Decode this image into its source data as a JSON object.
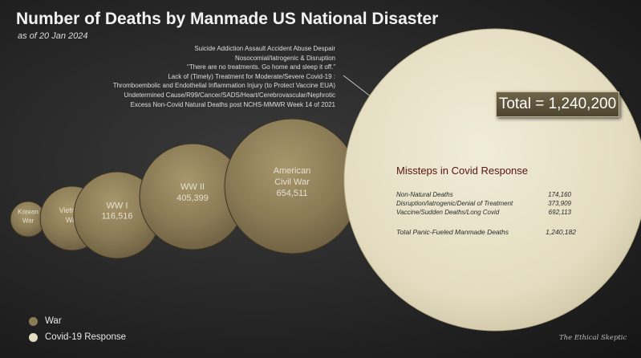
{
  "chart_data": {
    "type": "bubble",
    "title": "Number of Deaths by Manmade US National Disaster",
    "subtitle": "as of 20 Jan 2024",
    "series": [
      {
        "name": "Korean War",
        "label_lines": [
          "Korean",
          "War"
        ],
        "value": null,
        "group": "War"
      },
      {
        "name": "Vietnam War",
        "label_lines": [
          "Vietnam",
          "War"
        ],
        "value": null,
        "group": "War"
      },
      {
        "name": "WW I",
        "label_lines": [
          "WW I",
          "116,516"
        ],
        "value": 116516,
        "group": "War"
      },
      {
        "name": "WW II",
        "label_lines": [
          "WW II",
          "405,399"
        ],
        "value": 405399,
        "group": "War"
      },
      {
        "name": "American Civil War",
        "label_lines": [
          "American",
          "Civil War",
          "654,511"
        ],
        "value": 654511,
        "group": "War"
      },
      {
        "name": "Missteps in Covid Response",
        "label_lines": [],
        "value": 1240182,
        "group": "Covid-19 Response"
      }
    ],
    "legend": [
      {
        "label": "War",
        "color": "#8a7a55"
      },
      {
        "label": "Covid-19 Response",
        "color": "#e3dcc0"
      }
    ],
    "legend_placement": "bottom-left",
    "total_label": "Total = 1,240,200",
    "covid_causes": [
      "Suicide Addiction Assault Accident Abuse Despair",
      "Nosocomial/Iatrogenic & Disruption",
      "“There are no treatments. Go home and sleep it off.”",
      "Lack of (Timely) Treatment for Moderate/Severe Covid-19 :",
      "Thromboembolic and Endothelial Inflammation Injury (to Protect Vaccine EUA)",
      "Undetermined Cause/R99/Cancer/SADS/Heart/Cerebrovascular/Nephrotic",
      "Excess Non-Covid Natural Deaths post NCHS-MMWR Week 14 of 2021"
    ],
    "response_breakdown": {
      "title": "Missteps in Covid Response",
      "rows": [
        {
          "label": "Non-Natural Deaths",
          "value": "174,160"
        },
        {
          "label": "Disruption/Iatrogenic/Denial of Treatment",
          "value": "373,909"
        },
        {
          "label": "Vaccine/Sudden Deaths/Long Covid",
          "value": "692,113"
        }
      ],
      "total_label": "Total Panic-Fueled Manmade Deaths",
      "total_value": "1,240,182"
    },
    "colors": {
      "war": "#8a7a55",
      "covid": "#e3dcc0"
    }
  },
  "watermark": "The Ethical Skeptic"
}
